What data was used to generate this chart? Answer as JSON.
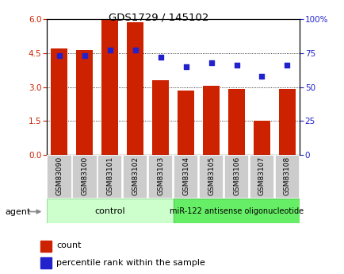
{
  "title": "GDS1729 / 145102",
  "categories": [
    "GSM83090",
    "GSM83100",
    "GSM83101",
    "GSM83102",
    "GSM83103",
    "GSM83104",
    "GSM83105",
    "GSM83106",
    "GSM83107",
    "GSM83108"
  ],
  "bar_values": [
    4.72,
    4.62,
    6.0,
    5.85,
    3.3,
    2.85,
    3.05,
    2.9,
    1.5,
    2.9
  ],
  "dot_values": [
    73,
    73,
    77,
    77,
    72,
    65,
    68,
    66,
    58,
    66
  ],
  "bar_color": "#cc2200",
  "dot_color": "#2222cc",
  "ylim_left": [
    0,
    6
  ],
  "ylim_right": [
    0,
    100
  ],
  "yticks_left": [
    0,
    1.5,
    3.0,
    4.5,
    6.0
  ],
  "yticks_right": [
    0,
    25,
    50,
    75,
    100
  ],
  "ytick_labels_right": [
    "0",
    "25",
    "50",
    "75",
    "100%"
  ],
  "group1_label": "control",
  "group2_label": "miR-122 antisense oligonucleotide",
  "agent_label": "agent",
  "legend_bar_label": "count",
  "legend_dot_label": "percentile rank within the sample",
  "plot_bg": "#ffffff",
  "group_bg1": "#ccffcc",
  "group_bg2": "#66ee66",
  "tick_bg": "#cccccc",
  "fig_bg": "#ffffff"
}
